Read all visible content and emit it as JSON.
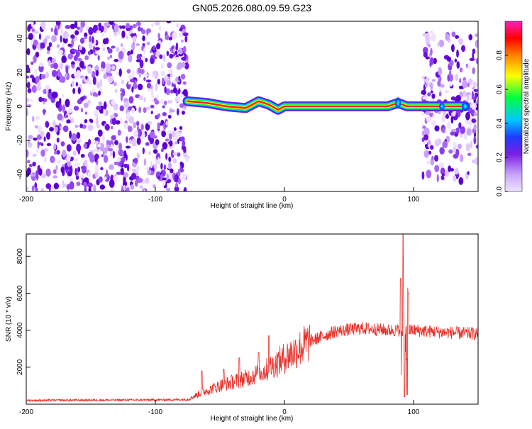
{
  "title": "GN05.2026.080.09.59.G23",
  "chart_data": [
    {
      "type": "heatmap",
      "xlabel": "Height of straight line (km)",
      "ylabel": "Frequency (Hz)",
      "xlim": [
        -200,
        150
      ],
      "ylim": [
        -50,
        50
      ],
      "xticks": [
        -200,
        -100,
        0,
        100
      ],
      "yticks": [
        -40,
        -20,
        0,
        20,
        40
      ],
      "colorbar": {
        "label": "Normalized spectral amplitude",
        "range": [
          0,
          1
        ],
        "ticks": [
          0.0,
          0.2,
          0.4,
          0.6,
          0.8
        ],
        "colormap": [
          "#e8d8ff",
          "#7a1fe0",
          "#0050ff",
          "#00d8ff",
          "#00ff40",
          "#ffff00",
          "#ff8000",
          "#ff0000",
          "#ff20c0"
        ]
      },
      "regions": [
        {
          "x_range": [
            -200,
            -75
          ],
          "y_range": [
            -50,
            50
          ],
          "amplitude": "low (0.05-0.3)"
        },
        {
          "x_range": [
            -75,
            107
          ],
          "y_range": [
            -3,
            3
          ],
          "amplitude": "high (0.6-1.0)"
        },
        {
          "x_range": [
            107,
            150
          ],
          "y_range": [
            -45,
            45
          ],
          "amplitude": "mixed (0.1-0.5)"
        }
      ],
      "ridge": [
        {
          "x": -75,
          "y": 3
        },
        {
          "x": -60,
          "y": 2
        },
        {
          "x": -45,
          "y": 0
        },
        {
          "x": -30,
          "y": -1
        },
        {
          "x": -20,
          "y": 3
        },
        {
          "x": -12,
          "y": 1
        },
        {
          "x": -5,
          "y": -2
        },
        {
          "x": 0,
          "y": 0
        },
        {
          "x": 40,
          "y": 0
        },
        {
          "x": 80,
          "y": 0
        },
        {
          "x": 88,
          "y": 2
        },
        {
          "x": 95,
          "y": 0
        },
        {
          "x": 106,
          "y": 0
        },
        {
          "x": 122,
          "y": 0
        },
        {
          "x": 140,
          "y": 0
        }
      ]
    },
    {
      "type": "line",
      "xlabel": "Height of straight line (km)",
      "ylabel": "SNR (10 * v/v)",
      "xlim": [
        -200,
        150
      ],
      "ylim": [
        0,
        9200
      ],
      "xticks": [
        -200,
        -100,
        0,
        100
      ],
      "yticks": [
        2000,
        4000,
        6000,
        8000
      ],
      "color": "#e8302a",
      "trend": [
        {
          "x": -200,
          "y": 200
        },
        {
          "x": -150,
          "y": 220
        },
        {
          "x": -100,
          "y": 230
        },
        {
          "x": -75,
          "y": 250
        },
        {
          "x": -65,
          "y": 600
        },
        {
          "x": -50,
          "y": 1000
        },
        {
          "x": -30,
          "y": 1400
        },
        {
          "x": -15,
          "y": 1800
        },
        {
          "x": 0,
          "y": 2500
        },
        {
          "x": 20,
          "y": 3400
        },
        {
          "x": 40,
          "y": 3950
        },
        {
          "x": 60,
          "y": 4100
        },
        {
          "x": 80,
          "y": 4000
        },
        {
          "x": 100,
          "y": 4000
        },
        {
          "x": 120,
          "y": 3900
        },
        {
          "x": 150,
          "y": 3800
        }
      ],
      "spikes": [
        {
          "x": -64,
          "y": 1800
        },
        {
          "x": -47,
          "y": 1900
        },
        {
          "x": -35,
          "y": 2500
        },
        {
          "x": -20,
          "y": 2800
        },
        {
          "x": -12,
          "y": 3700
        },
        {
          "x": 90,
          "y": 6800
        },
        {
          "x": 92,
          "y": 9200
        },
        {
          "x": 93,
          "y": 400
        },
        {
          "x": 95,
          "y": 500
        },
        {
          "x": 96,
          "y": 6000
        }
      ]
    }
  ]
}
